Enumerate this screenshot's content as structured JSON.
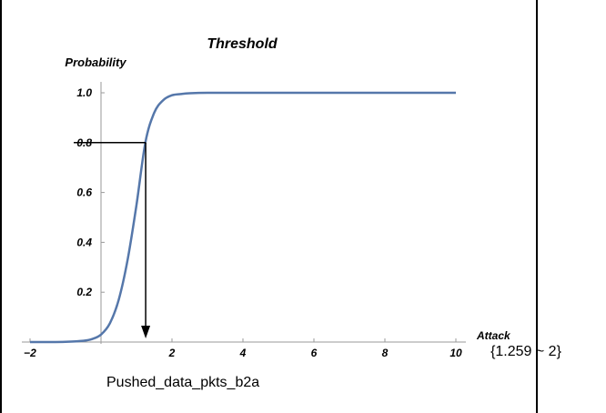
{
  "chart_data": {
    "type": "line",
    "title": "Threshold",
    "xlabel": "Attack",
    "ylabel": "Probability",
    "xlim": [
      -2,
      10
    ],
    "ylim": [
      0,
      1.0
    ],
    "x_ticks": [
      "−2",
      "2",
      "4",
      "6",
      "8",
      "10"
    ],
    "y_ticks": [
      "0.2",
      "0.4",
      "0.6",
      "0.8",
      "1.0"
    ],
    "grid": false,
    "series": [
      {
        "color": "#5577aa",
        "x": [
          -2,
          -1.5,
          -1,
          -0.5,
          -0.25,
          0,
          0.25,
          0.5,
          0.75,
          1,
          1.25,
          1.5,
          1.75,
          2,
          2.25,
          2.5,
          3,
          4,
          5,
          6,
          7,
          8,
          9,
          10
        ],
        "y": [
          0,
          0,
          0.001,
          0.005,
          0.012,
          0.03,
          0.075,
          0.17,
          0.33,
          0.55,
          0.8,
          0.92,
          0.97,
          0.99,
          0.995,
          0.998,
          1.0,
          1.0,
          1.0,
          1.0,
          1.0,
          1.0,
          1.0,
          1.0
        ]
      }
    ],
    "annotation": {
      "x": 1.259,
      "y": 0.8,
      "label": "{1.259 ~ 2}",
      "feature_label": "Pushed_data_pkts_b2a"
    }
  }
}
